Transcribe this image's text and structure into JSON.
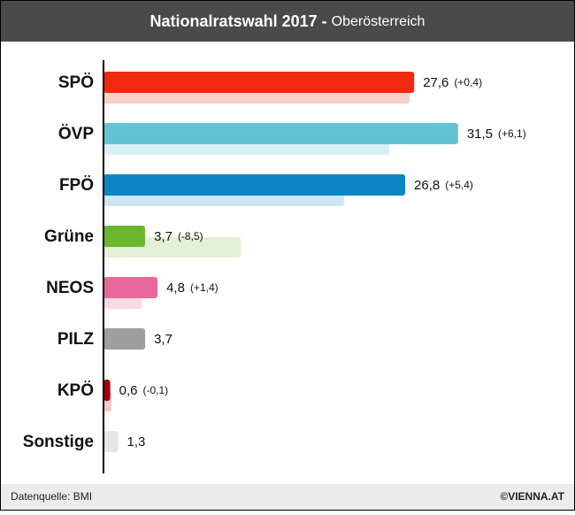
{
  "title": "Nationalratswahl 2017 -",
  "subtitle": "Oberösterreich",
  "footer": {
    "source": "Datenquelle: BMI",
    "brand": "©VIENNA.AT"
  },
  "chart_data": {
    "type": "bar",
    "orientation": "horizontal",
    "categories": [
      "SPÖ",
      "ÖVP",
      "FPÖ",
      "Grüne",
      "NEOS",
      "PILZ",
      "KPÖ",
      "Sonstige"
    ],
    "values": [
      27.6,
      31.5,
      26.8,
      3.7,
      4.8,
      3.7,
      0.6,
      1.3
    ],
    "value_labels": [
      "27,6",
      "31,5",
      "26,8",
      "3,7",
      "4,8",
      "3,7",
      "0,6",
      "1,3"
    ],
    "change_labels": [
      "(+0,4)",
      "(+6,1)",
      "(+5,4)",
      "(-8,5)",
      "(+1,4)",
      null,
      "(-0,1)",
      null
    ],
    "colors": [
      "#f02a0d",
      "#63c3d3",
      "#0a86c4",
      "#6bb82f",
      "#e8699e",
      "#9e9e9e",
      "#a00010",
      "#e6e6e6"
    ],
    "previous_values": [
      27.2,
      25.4,
      21.4,
      12.2,
      3.4,
      null,
      0.7,
      null
    ],
    "previous_colors": [
      "#f9cfca",
      "#d8f0f4",
      "#cde6f3",
      "#e2f0d6",
      "#f9d9e6",
      null,
      "#f4c9cc",
      null
    ],
    "xlim": [
      0,
      40
    ]
  }
}
